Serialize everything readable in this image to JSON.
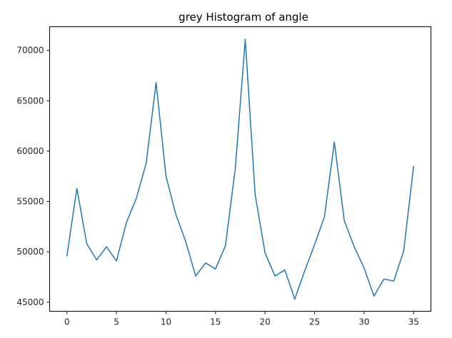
{
  "chart_data": {
    "type": "line",
    "title": "grey Histogram of angle",
    "xlabel": "",
    "ylabel": "",
    "xlim": [
      -1.75,
      36.75
    ],
    "ylim": [
      44100,
      72350
    ],
    "xticks": [
      0,
      5,
      10,
      15,
      20,
      25,
      30,
      35
    ],
    "xtick_labels": [
      "0",
      "5",
      "10",
      "15",
      "20",
      "25",
      "30",
      "35"
    ],
    "yticks": [
      45000,
      50000,
      55000,
      60000,
      65000,
      70000
    ],
    "ytick_labels": [
      "45000",
      "50000",
      "55000",
      "60000",
      "65000",
      "70000"
    ],
    "grid": false,
    "legend": "none",
    "series": [
      {
        "color": "#1f77b4",
        "x": [
          0,
          1,
          2,
          3,
          4,
          5,
          6,
          7,
          8,
          9,
          10,
          11,
          12,
          13,
          14,
          15,
          16,
          17,
          18,
          19,
          20,
          21,
          22,
          23,
          24,
          25,
          26,
          27,
          28,
          29,
          30,
          31,
          32,
          33,
          34,
          35
        ],
        "y": [
          49600,
          56300,
          50800,
          49200,
          50500,
          49100,
          52900,
          55300,
          58800,
          66800,
          57500,
          53700,
          51000,
          47600,
          48900,
          48300,
          50600,
          58300,
          71100,
          55700,
          49900,
          47600,
          48200,
          45300,
          48100,
          50700,
          53500,
          60900,
          53100,
          50500,
          48400,
          45600,
          47300,
          47100,
          50100,
          58500
        ]
      }
    ]
  }
}
